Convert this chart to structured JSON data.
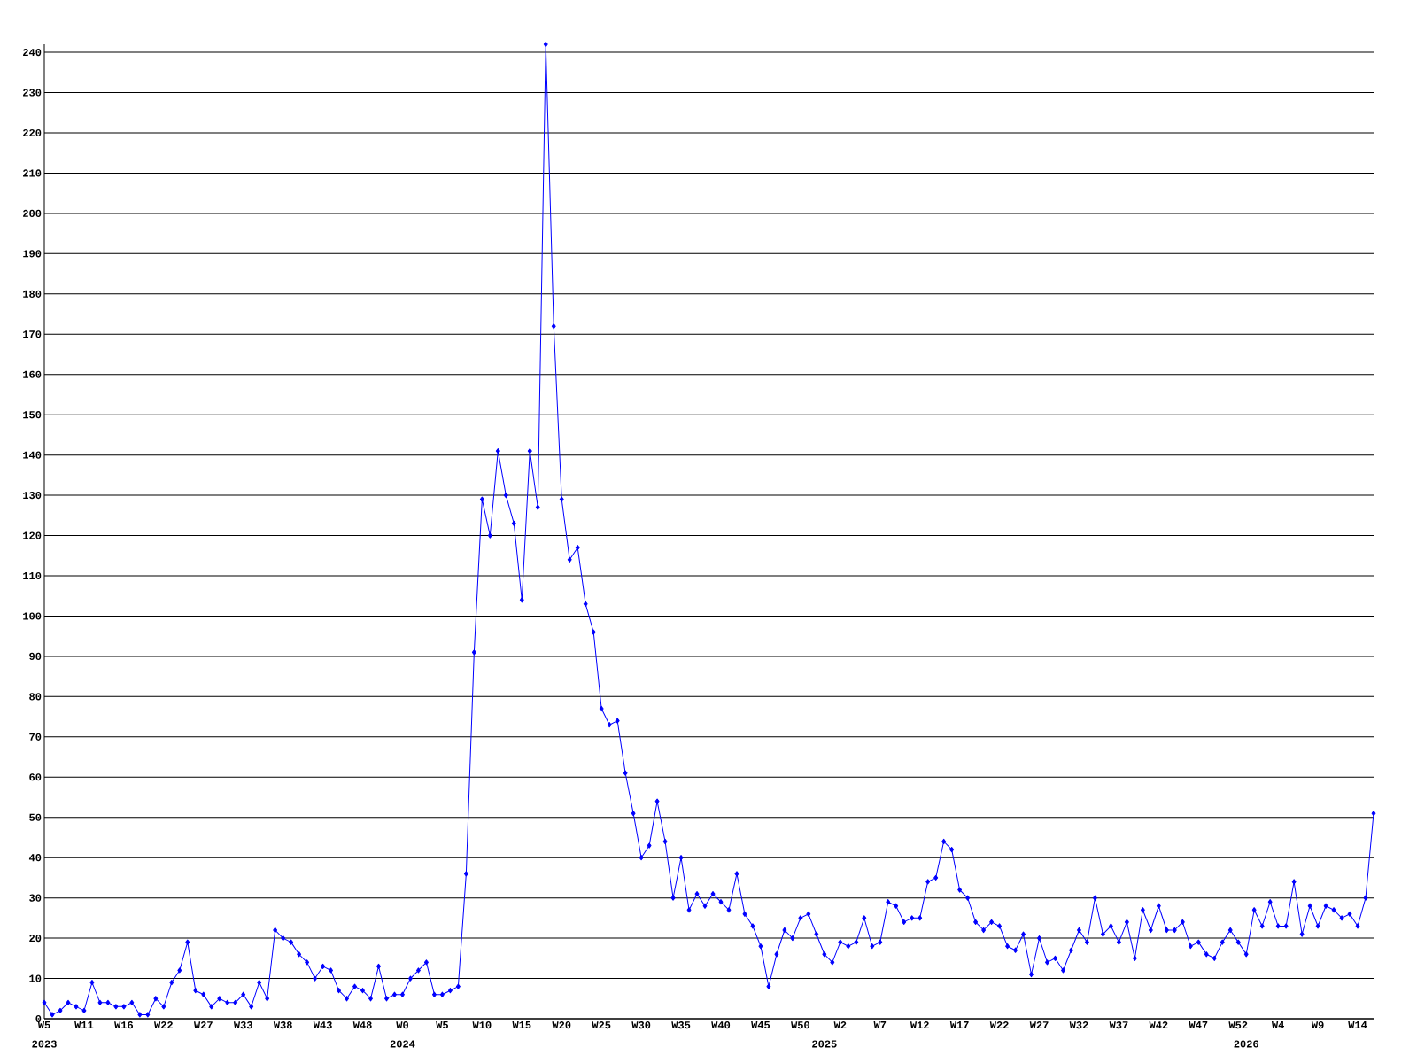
{
  "chart_data": {
    "type": "line",
    "color": "#0000ff",
    "marker": "diamond",
    "grid": "y",
    "categories": [
      "W5",
      null,
      null,
      null,
      null,
      "W11",
      null,
      null,
      null,
      null,
      "W16",
      null,
      null,
      null,
      null,
      "W22",
      null,
      null,
      null,
      null,
      "W27",
      null,
      null,
      null,
      null,
      "W33",
      null,
      null,
      null,
      null,
      "W38",
      null,
      null,
      null,
      null,
      "W43",
      null,
      null,
      null,
      null,
      "W48",
      null,
      null,
      null,
      null,
      "W0",
      null,
      null,
      null,
      null,
      "W5",
      null,
      null,
      null,
      null,
      "W10",
      null,
      null,
      null,
      null,
      "W15",
      null,
      null,
      null,
      null,
      "W20",
      null,
      null,
      null,
      null,
      "W25",
      null,
      null,
      null,
      null,
      "W30",
      null,
      null,
      null,
      null,
      "W35",
      null,
      null,
      null,
      null,
      "W40",
      null,
      null,
      null,
      null,
      "W45",
      null,
      null,
      null,
      null,
      "W50",
      null,
      null,
      null,
      null,
      "W2",
      null,
      null,
      null,
      null,
      "W7",
      null,
      null,
      null,
      null,
      "W12",
      null,
      null,
      null,
      null,
      "W17",
      null,
      null,
      null,
      null,
      "W22",
      null,
      null,
      null,
      null,
      "W27",
      null,
      null,
      null,
      null,
      "W32",
      null,
      null,
      null,
      null,
      "W37",
      null,
      null,
      null,
      null,
      "W42",
      null,
      null,
      null,
      null,
      "W47",
      null,
      null,
      null,
      null,
      "W52",
      null,
      null,
      null,
      null,
      "W4",
      null,
      null,
      null,
      null,
      "W9",
      null,
      null,
      null,
      null,
      "W14",
      null,
      null
    ],
    "values": [
      4,
      1,
      2,
      4,
      3,
      2,
      9,
      4,
      4,
      3,
      3,
      4,
      1,
      1,
      5,
      3,
      9,
      12,
      19,
      7,
      6,
      3,
      5,
      4,
      4,
      6,
      3,
      9,
      5,
      22,
      20,
      19,
      16,
      14,
      10,
      13,
      12,
      7,
      5,
      8,
      7,
      5,
      13,
      5,
      6,
      6,
      10,
      12,
      14,
      6,
      6,
      7,
      8,
      36,
      91,
      129,
      120,
      141,
      130,
      123,
      104,
      141,
      127,
      242,
      172,
      129,
      114,
      117,
      103,
      96,
      77,
      73,
      74,
      61,
      51,
      40,
      43,
      54,
      44,
      30,
      40,
      27,
      31,
      28,
      31,
      29,
      27,
      36,
      26,
      23,
      18,
      8,
      16,
      22,
      20,
      25,
      26,
      21,
      16,
      14,
      19,
      18,
      19,
      25,
      18,
      19,
      29,
      28,
      24,
      25,
      25,
      34,
      35,
      44,
      42,
      32,
      30,
      24,
      22,
      24,
      23,
      18,
      17,
      21,
      11,
      20,
      14,
      15,
      12,
      17,
      22,
      19,
      30,
      21,
      23,
      19,
      24,
      15,
      27,
      22,
      28,
      22,
      22,
      24,
      18,
      19,
      16,
      15,
      19,
      22,
      19,
      16,
      27,
      23,
      29,
      23,
      23,
      34,
      21,
      28,
      23,
      28,
      27,
      25,
      26,
      23,
      30,
      51
    ],
    "ylim": [
      0,
      242
    ],
    "yticks": [
      0,
      10,
      20,
      30,
      40,
      50,
      60,
      70,
      80,
      90,
      100,
      110,
      120,
      130,
      140,
      150,
      160,
      170,
      180,
      190,
      200,
      210,
      220,
      230,
      240
    ],
    "annotations": [
      "2023",
      "2024",
      "2025",
      "2026"
    ]
  }
}
